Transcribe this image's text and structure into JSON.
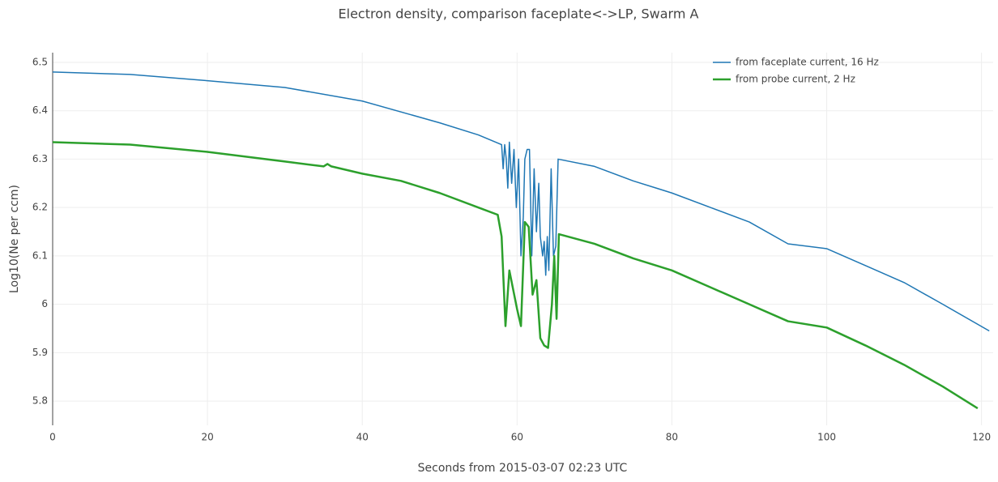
{
  "chart_data": {
    "type": "line",
    "title": "Electron density, comparison faceplate<->LP, Swarm A",
    "x_label": "Seconds from 2015-03-07 02:23 UTC",
    "y_label": "Log10(Ne per ccm)",
    "xlim": [
      0,
      121.5
    ],
    "ylim": [
      5.75,
      6.52
    ],
    "xticks": [
      0,
      20,
      40,
      60,
      80,
      100,
      120
    ],
    "yticks": [
      5.8,
      5.9,
      6,
      6.1,
      6.2,
      6.3,
      6.4,
      6.5
    ],
    "grid": true,
    "legend": "top-right",
    "series": [
      {
        "name": "from faceplate current, 16 Hz",
        "color": "#1f77b4",
        "width": 1.5,
        "x": [
          0,
          10,
          20,
          30,
          40,
          50,
          55,
          58,
          58.2,
          58.4,
          58.6,
          58.8,
          59,
          59.3,
          59.6,
          59.9,
          60.2,
          60.5,
          60.8,
          61,
          61.3,
          61.6,
          61.9,
          62.2,
          62.5,
          62.8,
          63,
          63.3,
          63.5,
          63.7,
          63.9,
          64.1,
          64.4,
          64.7,
          65,
          65.3,
          70,
          75,
          78,
          80,
          85,
          90,
          95,
          100,
          105,
          110,
          115,
          121
        ],
        "values": [
          6.48,
          6.475,
          6.462,
          6.448,
          6.42,
          6.375,
          6.35,
          6.33,
          6.28,
          6.33,
          6.3,
          6.24,
          6.335,
          6.25,
          6.32,
          6.2,
          6.3,
          6.1,
          6.18,
          6.3,
          6.32,
          6.32,
          6.1,
          6.28,
          6.15,
          6.25,
          6.14,
          6.1,
          6.13,
          6.06,
          6.14,
          6.07,
          6.28,
          6.1,
          6.12,
          6.3,
          6.285,
          6.255,
          6.24,
          6.23,
          6.2,
          6.17,
          6.125,
          6.115,
          6.08,
          6.045,
          6,
          5.945
        ]
      },
      {
        "name": "from probe current, 2 Hz",
        "color": "#2ca02c",
        "width": 2.5,
        "x": [
          0,
          10,
          20,
          30,
          35,
          35.5,
          36,
          40,
          45,
          50,
          55,
          57.5,
          58,
          58.5,
          59,
          60,
          60.5,
          61,
          61.5,
          62,
          62.5,
          63,
          63.5,
          64,
          64.5,
          64.8,
          65.1,
          65.4,
          70,
          75,
          80,
          85,
          90,
          95,
          100,
          105,
          110,
          115,
          119.5
        ],
        "values": [
          6.335,
          6.33,
          6.315,
          6.295,
          6.285,
          6.29,
          6.285,
          6.27,
          6.255,
          6.23,
          6.2,
          6.185,
          6.14,
          5.955,
          6.07,
          5.99,
          5.955,
          6.17,
          6.16,
          6.02,
          6.05,
          5.93,
          5.915,
          5.91,
          6,
          6.1,
          5.97,
          6.145,
          6.125,
          6.095,
          6.07,
          6.035,
          6,
          5.965,
          5.952,
          5.915,
          5.875,
          5.83,
          5.785
        ]
      }
    ]
  }
}
